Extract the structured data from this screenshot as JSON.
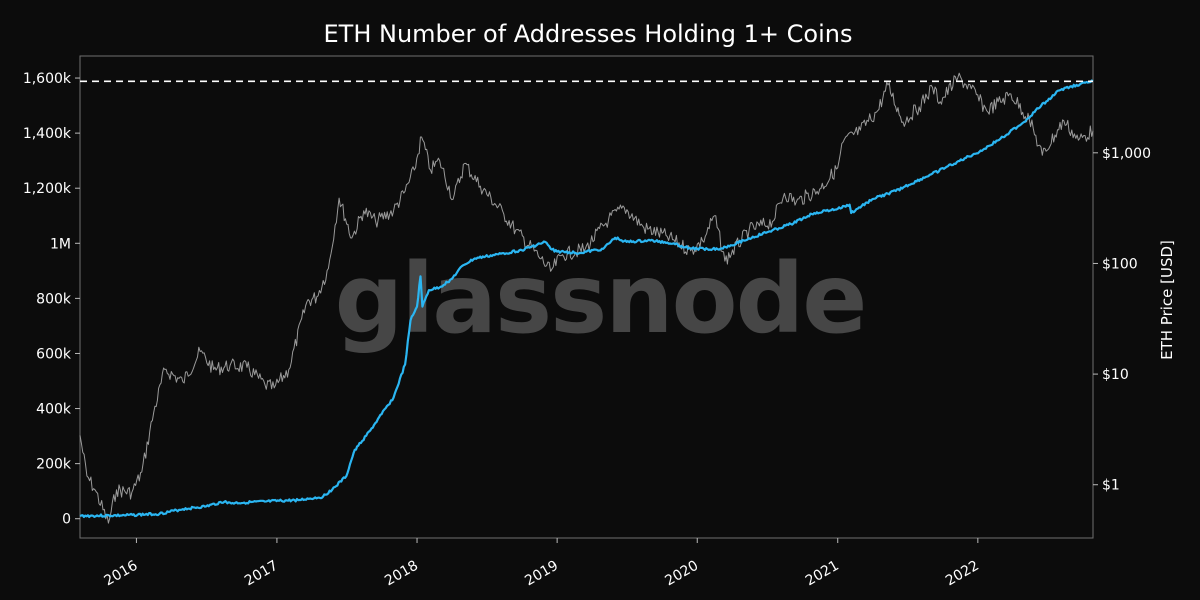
{
  "chart_data": {
    "type": "line",
    "title": "ETH Number of Addresses Holding 1+ Coins",
    "xlabel": "",
    "ylabel_left": "",
    "ylabel_right": "ETH Price [USD]",
    "watermark": "glassnode",
    "grid": false,
    "legend": "none",
    "x_range": [
      "2015-08-07",
      "2022-10-28"
    ],
    "y_left_range": [
      -70000,
      1680000
    ],
    "y_right_range": [
      0.33,
      7500
    ],
    "y_right_scale": "log",
    "x_ticks": [
      {
        "date": "2016-01-01",
        "label": "2016"
      },
      {
        "date": "2017-01-01",
        "label": "2017"
      },
      {
        "date": "2018-01-01",
        "label": "2018"
      },
      {
        "date": "2019-01-01",
        "label": "2019"
      },
      {
        "date": "2020-01-01",
        "label": "2020"
      },
      {
        "date": "2021-01-01",
        "label": "2021"
      },
      {
        "date": "2022-01-01",
        "label": "2022"
      }
    ],
    "y_left_ticks": [
      {
        "value": 0,
        "label": "0"
      },
      {
        "value": 200000,
        "label": "200k"
      },
      {
        "value": 400000,
        "label": "400k"
      },
      {
        "value": 600000,
        "label": "600k"
      },
      {
        "value": 800000,
        "label": "800k"
      },
      {
        "value": 1000000,
        "label": "1M"
      },
      {
        "value": 1200000,
        "label": "1,200k"
      },
      {
        "value": 1400000,
        "label": "1,400k"
      },
      {
        "value": 1600000,
        "label": "1,600k"
      }
    ],
    "y_right_ticks": [
      {
        "value": 1,
        "label": "$1"
      },
      {
        "value": 10,
        "label": "$10"
      },
      {
        "value": 100,
        "label": "$100"
      },
      {
        "value": 1000,
        "label": "$1,000"
      }
    ],
    "ath_line": {
      "value": 1588000,
      "color": "#ffffff",
      "style": "dashed"
    },
    "series": [
      {
        "axis": "left",
        "color": "#2bb6f2",
        "points": [
          [
            "2015-08-07",
            10000
          ],
          [
            "2015-12-01",
            12000
          ],
          [
            "2016-03-01",
            18000
          ],
          [
            "2016-05-01",
            35000
          ],
          [
            "2016-07-01",
            45000
          ],
          [
            "2016-08-20",
            64000
          ],
          [
            "2016-08-25",
            56000
          ],
          [
            "2016-12-01",
            62000
          ],
          [
            "2017-03-01",
            68000
          ],
          [
            "2017-05-01",
            80000
          ],
          [
            "2017-06-01",
            115000
          ],
          [
            "2017-07-01",
            155000
          ],
          [
            "2017-07-20",
            240000
          ],
          [
            "2017-08-01",
            265000
          ],
          [
            "2017-09-01",
            320000
          ],
          [
            "2017-10-01",
            380000
          ],
          [
            "2017-11-01",
            440000
          ],
          [
            "2017-12-01",
            560000
          ],
          [
            "2017-12-15",
            720000
          ],
          [
            "2018-01-01",
            770000
          ],
          [
            "2018-01-10",
            880000
          ],
          [
            "2018-01-15",
            770000
          ],
          [
            "2018-02-01",
            830000
          ],
          [
            "2018-03-01",
            840000
          ],
          [
            "2018-04-01",
            870000
          ],
          [
            "2018-05-01",
            920000
          ],
          [
            "2018-06-01",
            945000
          ],
          [
            "2018-08-01",
            960000
          ],
          [
            "2018-10-01",
            975000
          ],
          [
            "2018-12-01",
            1005000
          ],
          [
            "2018-12-15",
            980000
          ],
          [
            "2019-01-01",
            970000
          ],
          [
            "2019-03-01",
            965000
          ],
          [
            "2019-05-01",
            980000
          ],
          [
            "2019-06-01",
            1020000
          ],
          [
            "2019-07-01",
            1005000
          ],
          [
            "2019-09-01",
            1010000
          ],
          [
            "2019-11-01",
            1000000
          ],
          [
            "2019-12-01",
            985000
          ],
          [
            "2020-01-01",
            980000
          ],
          [
            "2020-03-01",
            980000
          ],
          [
            "2020-05-01",
            1010000
          ],
          [
            "2020-07-01",
            1040000
          ],
          [
            "2020-09-01",
            1070000
          ],
          [
            "2020-11-01",
            1110000
          ],
          [
            "2021-01-01",
            1125000
          ],
          [
            "2021-02-01",
            1140000
          ],
          [
            "2021-02-05",
            1110000
          ],
          [
            "2021-04-01",
            1160000
          ],
          [
            "2021-06-01",
            1190000
          ],
          [
            "2021-09-01",
            1250000
          ],
          [
            "2021-12-01",
            1310000
          ],
          [
            "2022-01-15",
            1340000
          ],
          [
            "2022-03-01",
            1380000
          ],
          [
            "2022-05-01",
            1440000
          ],
          [
            "2022-06-15",
            1500000
          ],
          [
            "2022-08-01",
            1555000
          ],
          [
            "2022-09-15",
            1575000
          ],
          [
            "2022-10-28",
            1588000
          ]
        ]
      },
      {
        "axis": "right",
        "color": "#9a9a9a",
        "points": [
          [
            "2015-08-07",
            2.8
          ],
          [
            "2015-08-25",
            1.2
          ],
          [
            "2015-09-15",
            0.9
          ],
          [
            "2015-10-20",
            0.45
          ],
          [
            "2015-11-10",
            0.9
          ],
          [
            "2015-12-20",
            0.85
          ],
          [
            "2016-01-15",
            1.3
          ],
          [
            "2016-02-15",
            4.5
          ],
          [
            "2016-03-15",
            11
          ],
          [
            "2016-05-01",
            8.5
          ],
          [
            "2016-06-15",
            16
          ],
          [
            "2016-07-20",
            11
          ],
          [
            "2016-09-01",
            12
          ],
          [
            "2016-10-15",
            11.5
          ],
          [
            "2016-12-01",
            8
          ],
          [
            "2016-12-25",
            7.5
          ],
          [
            "2017-02-01",
            11
          ],
          [
            "2017-03-20",
            45
          ],
          [
            "2017-04-15",
            50
          ],
          [
            "2017-05-15",
            90
          ],
          [
            "2017-06-12",
            390
          ],
          [
            "2017-07-15",
            170
          ],
          [
            "2017-08-15",
            300
          ],
          [
            "2017-09-15",
            240
          ],
          [
            "2017-11-01",
            300
          ],
          [
            "2017-12-01",
            450
          ],
          [
            "2017-12-25",
            700
          ],
          [
            "2018-01-13",
            1390
          ],
          [
            "2018-02-05",
            700
          ],
          [
            "2018-03-01",
            850
          ],
          [
            "2018-04-05",
            380
          ],
          [
            "2018-05-05",
            800
          ],
          [
            "2018-06-15",
            500
          ],
          [
            "2018-08-15",
            280
          ],
          [
            "2018-09-15",
            200
          ],
          [
            "2018-11-20",
            110
          ],
          [
            "2018-12-15",
            85
          ],
          [
            "2019-01-15",
            120
          ],
          [
            "2019-03-15",
            135
          ],
          [
            "2019-05-15",
            250
          ],
          [
            "2019-06-25",
            320
          ],
          [
            "2019-08-15",
            210
          ],
          [
            "2019-10-15",
            175
          ],
          [
            "2019-12-15",
            130
          ],
          [
            "2020-01-15",
            160
          ],
          [
            "2020-02-15",
            270
          ],
          [
            "2020-03-13",
            105
          ],
          [
            "2020-05-15",
            200
          ],
          [
            "2020-07-15",
            240
          ],
          [
            "2020-08-15",
            430
          ],
          [
            "2020-09-15",
            360
          ],
          [
            "2020-11-15",
            470
          ],
          [
            "2021-01-01",
            730
          ],
          [
            "2021-01-15",
            1250
          ],
          [
            "2021-03-01",
            1600
          ],
          [
            "2021-04-15",
            2400
          ],
          [
            "2021-05-12",
            4100
          ],
          [
            "2021-06-20",
            1900
          ],
          [
            "2021-08-01",
            2600
          ],
          [
            "2021-09-05",
            3900
          ],
          [
            "2021-09-25",
            2900
          ],
          [
            "2021-11-10",
            4800
          ],
          [
            "2021-12-15",
            3800
          ],
          [
            "2022-01-24",
            2400
          ],
          [
            "2022-03-28",
            3400
          ],
          [
            "2022-05-15",
            2000
          ],
          [
            "2022-06-18",
            950
          ],
          [
            "2022-08-13",
            1950
          ],
          [
            "2022-09-20",
            1300
          ],
          [
            "2022-10-28",
            1580
          ]
        ]
      }
    ]
  }
}
